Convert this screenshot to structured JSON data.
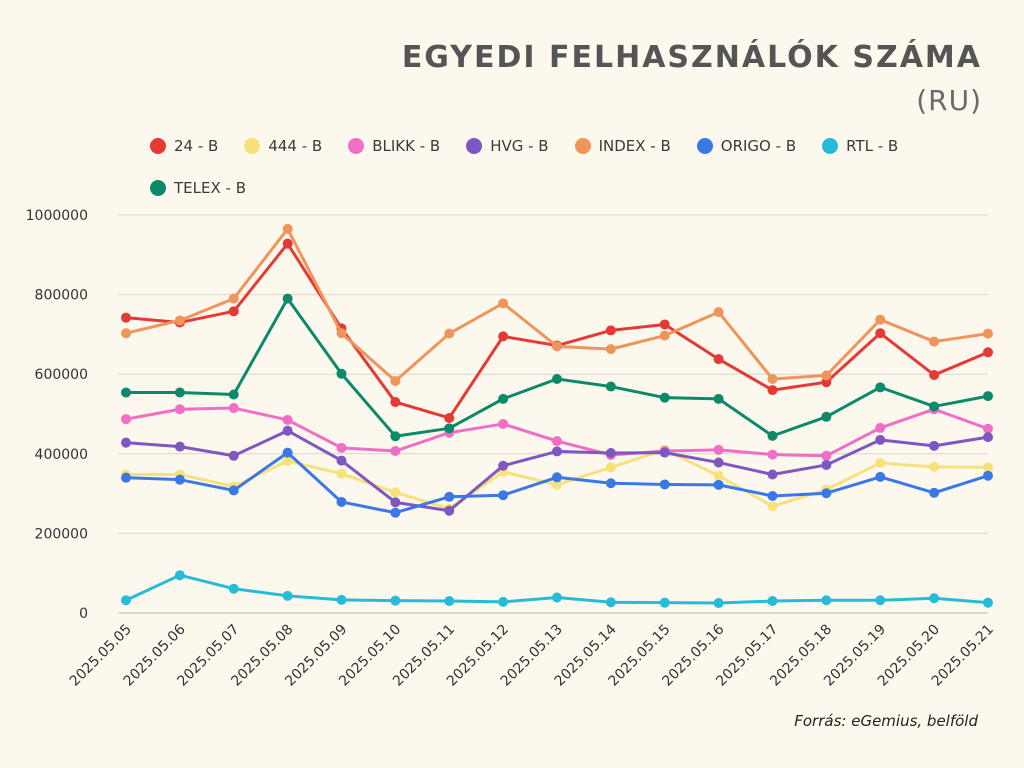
{
  "title": "EGYEDI FELHASZNÁLÓK SZÁMA",
  "subtitle": "(RU)",
  "source": "Forrás: eGemius, belföld",
  "chart_data": {
    "type": "line",
    "title": "EGYEDI FELHASZNÁLÓK SZÁMA",
    "subtitle": "(RU)",
    "xlabel": "",
    "ylabel": "",
    "ylim": [
      0,
      1000000
    ],
    "yticks": [
      0,
      200000,
      400000,
      600000,
      800000,
      1000000
    ],
    "grid": true,
    "legend_position": "top",
    "x": [
      "2025.05.05",
      "2025.05.06",
      "2025.05.07",
      "2025.05.08",
      "2025.05.09",
      "2025.05.10",
      "2025.05.11",
      "2025.05.12",
      "2025.05.13",
      "2025.05.14",
      "2025.05.15",
      "2025.05.16",
      "2025.05.17",
      "2025.05.18",
      "2025.05.19",
      "2025.05.20",
      "2025.05.21"
    ],
    "series": [
      {
        "name": "24 - B",
        "color": "#e53935",
        "values": [
          742000,
          730000,
          758000,
          928000,
          715000,
          530000,
          490000,
          695000,
          672000,
          710000,
          725000,
          638000,
          560000,
          580000,
          703000,
          598000,
          655000
        ]
      },
      {
        "name": "444 - B",
        "color": "#f6e27a",
        "values": [
          348000,
          348000,
          318000,
          382000,
          350000,
          303000,
          262000,
          355000,
          322000,
          366000,
          410000,
          345000,
          268000,
          310000,
          377000,
          367000,
          366000
        ]
      },
      {
        "name": "BLIKK - B",
        "color": "#f06ec5",
        "values": [
          487000,
          512000,
          515000,
          485000,
          415000,
          407000,
          453000,
          475000,
          432000,
          397000,
          407000,
          410000,
          398000,
          395000,
          465000,
          512000,
          463000
        ]
      },
      {
        "name": "HVG - B",
        "color": "#7e57c2",
        "values": [
          428000,
          418000,
          395000,
          458000,
          383000,
          278000,
          257000,
          370000,
          406000,
          402000,
          403000,
          378000,
          348000,
          372000,
          435000,
          420000,
          442000
        ]
      },
      {
        "name": "INDEX - B",
        "color": "#f0955a",
        "values": [
          703000,
          735000,
          790000,
          965000,
          703000,
          583000,
          702000,
          778000,
          670000,
          663000,
          697000,
          756000,
          588000,
          597000,
          737000,
          682000,
          702000
        ]
      },
      {
        "name": "ORIGO - B",
        "color": "#3b78e7",
        "values": [
          340000,
          335000,
          308000,
          403000,
          279000,
          252000,
          292000,
          296000,
          341000,
          326000,
          323000,
          322000,
          294000,
          301000,
          342000,
          302000,
          345000
        ]
      },
      {
        "name": "RTL - B",
        "color": "#26bcd7",
        "values": [
          32000,
          95000,
          61000,
          43000,
          33000,
          31000,
          30000,
          28000,
          39000,
          27000,
          26000,
          25000,
          30000,
          32000,
          32000,
          37000,
          26000
        ]
      },
      {
        "name": "TELEX - B",
        "color": "#0b8a6a",
        "values": [
          554000,
          554000,
          549000,
          790000,
          601000,
          444000,
          464000,
          538000,
          588000,
          569000,
          541000,
          538000,
          445000,
          493000,
          567000,
          519000,
          545000
        ]
      }
    ]
  }
}
